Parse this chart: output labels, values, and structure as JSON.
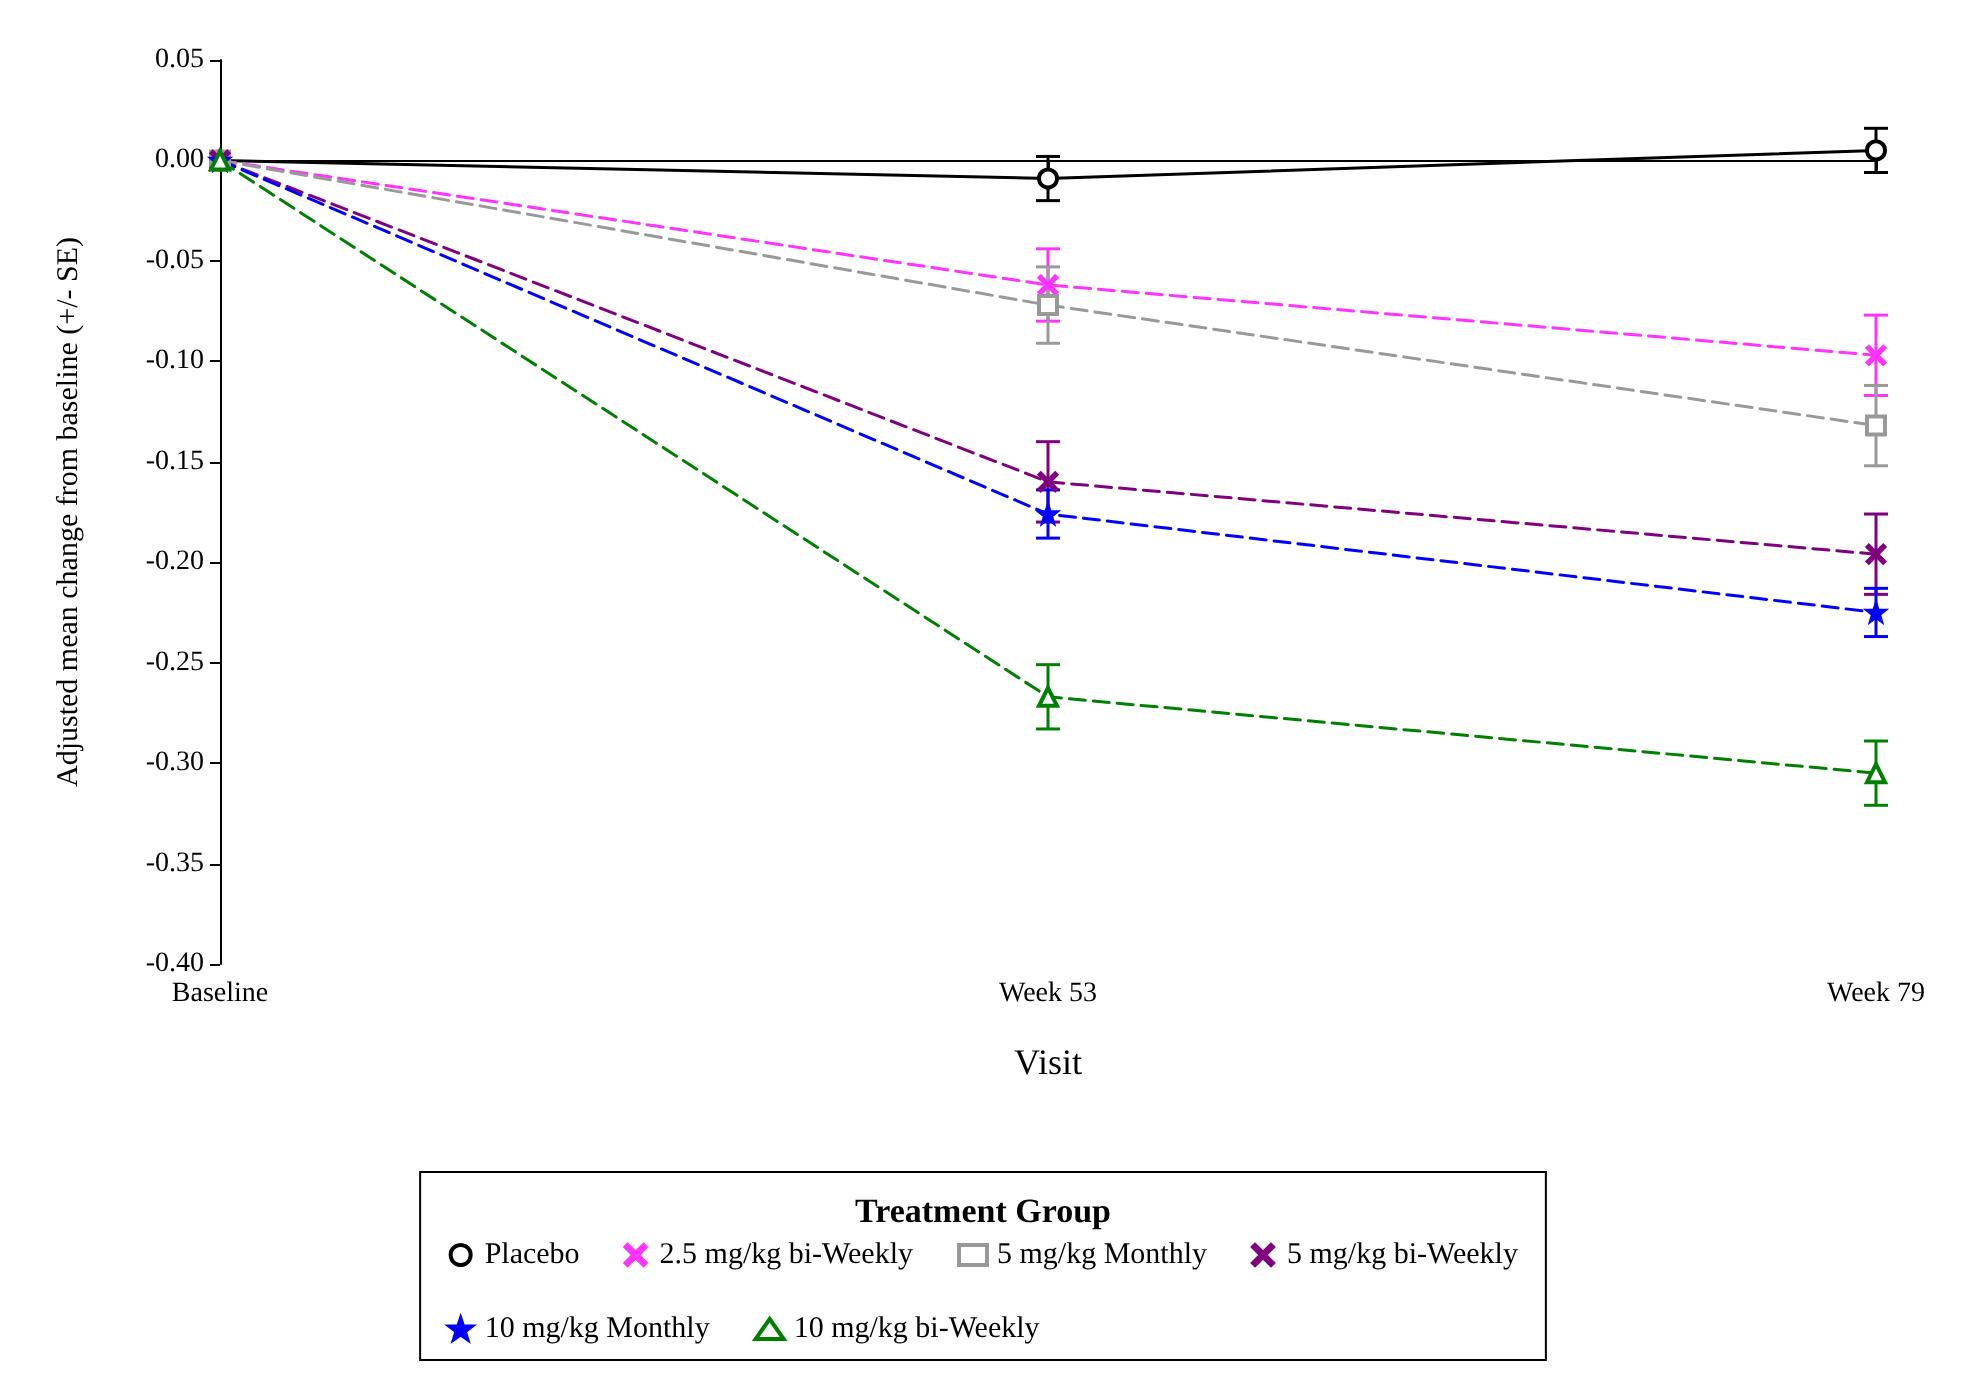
{
  "chart_data": {
    "type": "line",
    "xlabel": "Visit",
    "ylabel": "Adjusted mean change from baseline (+/- SE)",
    "legend_title": "Treatment Group",
    "legend": "bottom",
    "categories": [
      "Baseline",
      "Week 53",
      "Week 79"
    ],
    "ylim": [
      -0.4,
      0.05
    ],
    "yticks": [
      {
        "value": 0.05,
        "label": "0.05"
      },
      {
        "value": 0,
        "label": "0.00"
      },
      {
        "value": -0.05,
        "label": "-0.05"
      },
      {
        "value": -0.1,
        "label": "-0.10"
      },
      {
        "value": -0.15,
        "label": "-0.15"
      },
      {
        "value": -0.2,
        "label": "-0.20"
      },
      {
        "value": -0.25,
        "label": "-0.25"
      },
      {
        "value": -0.3,
        "label": "-0.30"
      },
      {
        "value": -0.35,
        "label": "-0.35"
      },
      {
        "value": -0.4,
        "label": "-0.40"
      }
    ],
    "series": [
      {
        "name": "Placebo",
        "color": "#000000",
        "marker": "circle",
        "line_style": "solid",
        "values": [
          0,
          -0.009,
          0.005
        ],
        "errors": [
          null,
          0.011,
          0.011
        ]
      },
      {
        "name": "2.5 mg/kg bi-Weekly",
        "color": "#ff33ff",
        "marker": "cross",
        "line_style": "dashed",
        "values": [
          0,
          -0.062,
          -0.097
        ],
        "errors": [
          null,
          0.018,
          0.02
        ]
      },
      {
        "name": "5 mg/kg Monthly",
        "color": "#999999",
        "marker": "square",
        "line_style": "dashed",
        "values": [
          0,
          -0.072,
          -0.132
        ],
        "errors": [
          null,
          0.019,
          0.02
        ]
      },
      {
        "name": "5 mg/kg bi-Weekly",
        "color": "#800080",
        "marker": "cross",
        "line_style": "dashed",
        "values": [
          0,
          -0.16,
          -0.196
        ],
        "errors": [
          null,
          0.02,
          0.02
        ]
      },
      {
        "name": "10 mg/kg Monthly",
        "color": "#0000ff",
        "marker": "star",
        "line_style": "dashed",
        "values": [
          0,
          -0.176,
          -0.225
        ],
        "errors": [
          null,
          0.012,
          0.012
        ]
      },
      {
        "name": "10 mg/kg bi-Weekly",
        "color": "#008000",
        "marker": "triangle",
        "line_style": "dashed",
        "values": [
          0,
          -0.267,
          -0.305
        ],
        "errors": [
          null,
          0.016,
          0.016
        ]
      }
    ]
  }
}
